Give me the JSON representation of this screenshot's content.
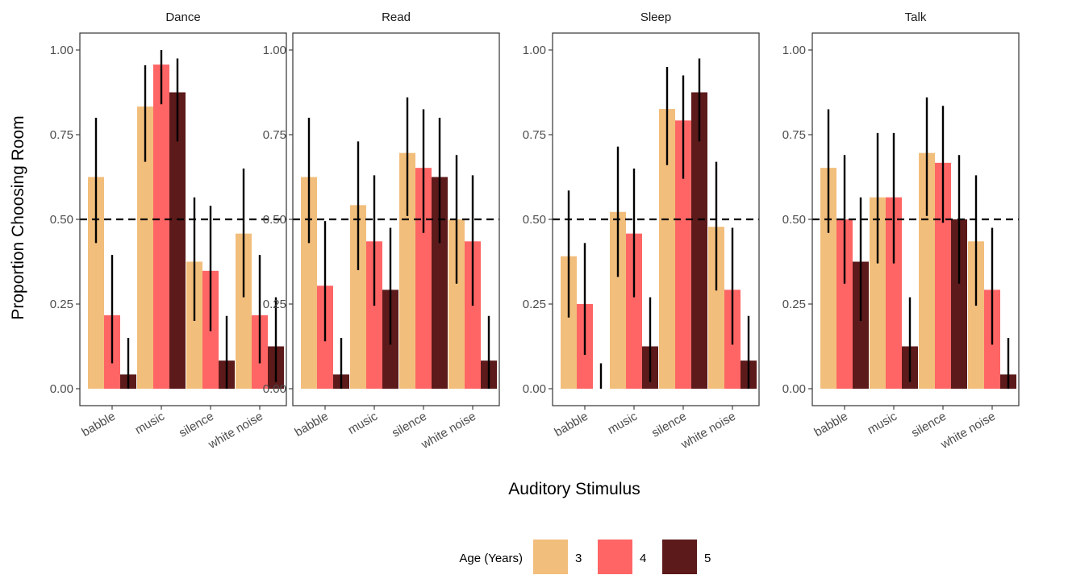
{
  "chart_data": {
    "type": "bar",
    "ylabel": "Proportion Choosing Room",
    "xlabel": "Auditory Stimulus",
    "ylim": [
      0,
      1.05
    ],
    "yticks": [
      "0.00",
      "0.25",
      "0.50",
      "0.75",
      "1.00"
    ],
    "ytick_values": [
      0,
      0.25,
      0.5,
      0.75,
      1.0
    ],
    "reference_line": 0.5,
    "categories": [
      "babble",
      "music",
      "silence",
      "white noise"
    ],
    "legend": {
      "title": "Age (Years)",
      "position": "bottom",
      "entries": [
        {
          "label": "3",
          "color": "#F2BE7C"
        },
        {
          "label": "4",
          "color": "#FF6565"
        },
        {
          "label": "5",
          "color": "#5C1A1A"
        }
      ]
    },
    "facets": [
      {
        "title": "Dance",
        "series": [
          {
            "values": [
              0.625,
              0.833,
              0.375,
              0.458
            ],
            "lower": [
              0.43,
              0.67,
              0.2,
              0.27
            ],
            "upper": [
              0.8,
              0.955,
              0.565,
              0.65
            ]
          },
          {
            "values": [
              0.217,
              0.957,
              0.348,
              0.217
            ],
            "lower": [
              0.075,
              0.84,
              0.17,
              0.075
            ],
            "upper": [
              0.395,
              1.0,
              0.54,
              0.395
            ]
          },
          {
            "values": [
              0.042,
              0.875,
              0.083,
              0.125
            ],
            "lower": [
              0.0,
              0.73,
              0.0,
              0.02
            ],
            "upper": [
              0.15,
              0.975,
              0.215,
              0.27
            ]
          }
        ]
      },
      {
        "title": "Read",
        "series": [
          {
            "values": [
              0.625,
              0.542,
              0.696,
              0.5
            ],
            "lower": [
              0.43,
              0.35,
              0.51,
              0.31
            ],
            "upper": [
              0.8,
              0.73,
              0.86,
              0.69
            ]
          },
          {
            "values": [
              0.304,
              0.435,
              0.652,
              0.435
            ],
            "lower": [
              0.14,
              0.245,
              0.46,
              0.245
            ],
            "upper": [
              0.495,
              0.63,
              0.825,
              0.63
            ]
          },
          {
            "values": [
              0.042,
              0.292,
              0.625,
              0.083
            ],
            "lower": [
              0.0,
              0.13,
              0.43,
              0.0
            ],
            "upper": [
              0.15,
              0.475,
              0.8,
              0.215
            ]
          }
        ]
      },
      {
        "title": "Sleep",
        "series": [
          {
            "values": [
              0.391,
              0.522,
              0.826,
              0.478
            ],
            "lower": [
              0.21,
              0.33,
              0.66,
              0.29
            ],
            "upper": [
              0.585,
              0.715,
              0.95,
              0.67
            ]
          },
          {
            "values": [
              0.25,
              0.458,
              0.792,
              0.292
            ],
            "lower": [
              0.1,
              0.27,
              0.62,
              0.13
            ],
            "upper": [
              0.43,
              0.65,
              0.925,
              0.475
            ]
          },
          {
            "values": [
              0.0,
              0.125,
              0.875,
              0.083
            ],
            "lower": [
              0.0,
              0.02,
              0.73,
              0.0
            ],
            "upper": [
              0.075,
              0.27,
              0.975,
              0.215
            ]
          }
        ]
      },
      {
        "title": "Talk",
        "series": [
          {
            "values": [
              0.652,
              0.565,
              0.696,
              0.435
            ],
            "lower": [
              0.46,
              0.37,
              0.51,
              0.245
            ],
            "upper": [
              0.825,
              0.755,
              0.86,
              0.63
            ]
          },
          {
            "values": [
              0.5,
              0.565,
              0.667,
              0.292
            ],
            "lower": [
              0.31,
              0.37,
              0.49,
              0.13
            ],
            "upper": [
              0.69,
              0.755,
              0.835,
              0.475
            ]
          },
          {
            "values": [
              0.375,
              0.125,
              0.5,
              0.042
            ],
            "lower": [
              0.2,
              0.02,
              0.31,
              0.0
            ],
            "upper": [
              0.565,
              0.27,
              0.69,
              0.15
            ]
          }
        ]
      }
    ]
  }
}
